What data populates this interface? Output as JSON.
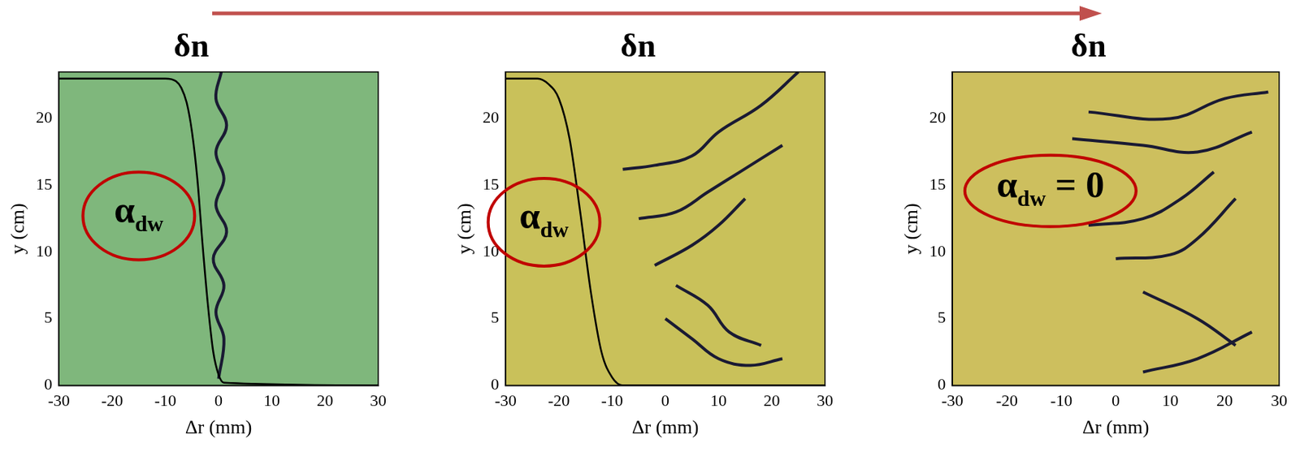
{
  "chart_data": [
    {
      "type": "line",
      "title": "δn",
      "x_label": "Δr (mm)",
      "y_label": "y (cm)",
      "xlim": [
        -30,
        30
      ],
      "xticks": [
        -30,
        -20,
        -10,
        0,
        10,
        20,
        30
      ],
      "ylim": [
        0,
        23.5
      ],
      "yticks": [
        0,
        5,
        10,
        15,
        20
      ],
      "grid": false,
      "legend": false,
      "color": "#7fb77c",
      "annotation": {
        "text": "α",
        "subscript": "dw",
        "suffix": ""
      },
      "series": [
        {
          "color": "#000000",
          "x": [
            -30,
            -10,
            -8,
            -7,
            -6,
            -5,
            -4,
            -3,
            -2,
            -1,
            0,
            1,
            30
          ],
          "values": [
            23,
            23,
            22.8,
            22.3,
            21.2,
            19,
            15.5,
            10.5,
            6,
            2.5,
            0.8,
            0.2,
            0
          ]
        },
        {
          "color": "#1a1a33",
          "x": [
            0.5,
            -0.5,
            1.5,
            -0.5,
            1,
            -0.5,
            1.5,
            -1,
            1,
            -0.5,
            1,
            0
          ],
          "values": [
            23.5,
            21.5,
            19.5,
            17.5,
            15.5,
            13.5,
            11.5,
            9.5,
            7.5,
            5.5,
            3.5,
            0.5
          ]
        }
      ]
    },
    {
      "type": "line",
      "title": "δn",
      "x_label": "Δr (mm)",
      "y_label": "y (cm)",
      "xlim": [
        -30,
        30
      ],
      "xticks": [
        -30,
        -20,
        -10,
        0,
        10,
        20,
        30
      ],
      "ylim": [
        0,
        23.5
      ],
      "yticks": [
        0,
        5,
        10,
        15,
        20
      ],
      "grid": false,
      "legend": false,
      "color": "#c9c15a",
      "annotation": {
        "text": "α",
        "subscript": "dw",
        "suffix": ""
      },
      "series": [
        {
          "color": "#000000",
          "x": [
            -30,
            -24,
            -22,
            -20,
            -18,
            -16,
            -14,
            -12,
            -10,
            -8,
            30
          ],
          "values": [
            23,
            23,
            22.6,
            21.5,
            18.5,
            13,
            7,
            2.5,
            0.6,
            0,
            0
          ]
        },
        {
          "color": "#1a1a33",
          "x": [
            -8,
            -2,
            5,
            10,
            18,
            25
          ],
          "values": [
            16.2,
            16.5,
            17.2,
            19,
            21,
            23.5
          ]
        },
        {
          "color": "#1a1a33",
          "x": [
            -5,
            2,
            8,
            14,
            22
          ],
          "values": [
            12.5,
            13,
            14.5,
            16,
            18
          ]
        },
        {
          "color": "#1a1a33",
          "x": [
            -2,
            5,
            10,
            15
          ],
          "values": [
            9,
            10.5,
            12,
            14
          ]
        },
        {
          "color": "#1a1a33",
          "x": [
            2,
            8,
            12,
            18
          ],
          "values": [
            7.5,
            6,
            4,
            3
          ]
        },
        {
          "color": "#1a1a33",
          "x": [
            0,
            5,
            10,
            16,
            22
          ],
          "values": [
            5,
            3.5,
            2,
            1.5,
            2
          ]
        }
      ]
    },
    {
      "type": "line",
      "title": "δn",
      "x_label": "Δr (mm)",
      "y_label": "y (cm)",
      "xlim": [
        -30,
        30
      ],
      "xticks": [
        -30,
        -20,
        -10,
        0,
        10,
        20,
        30
      ],
      "ylim": [
        0,
        23.5
      ],
      "yticks": [
        0,
        5,
        10,
        15,
        20
      ],
      "grid": false,
      "legend": false,
      "color": "#cdbf5e",
      "annotation": {
        "text": "α",
        "subscript": "dw",
        "suffix": " = 0"
      },
      "series": [
        {
          "color": "#1a1a33",
          "x": [
            -5,
            10,
            20,
            28
          ],
          "values": [
            20.5,
            20,
            21.5,
            22
          ]
        },
        {
          "color": "#1a1a33",
          "x": [
            -8,
            5,
            15,
            25
          ],
          "values": [
            18.5,
            18,
            17.5,
            19
          ]
        },
        {
          "color": "#1a1a33",
          "x": [
            -5,
            5,
            12,
            18
          ],
          "values": [
            12,
            12.5,
            14,
            16
          ]
        },
        {
          "color": "#1a1a33",
          "x": [
            0,
            10,
            15,
            22
          ],
          "values": [
            9.5,
            9.8,
            11,
            14
          ]
        },
        {
          "color": "#1a1a33",
          "x": [
            5,
            15,
            22
          ],
          "values": [
            7,
            5,
            3
          ]
        },
        {
          "color": "#1a1a33",
          "x": [
            5,
            15,
            25
          ],
          "values": [
            1,
            2,
            4
          ]
        }
      ]
    }
  ]
}
